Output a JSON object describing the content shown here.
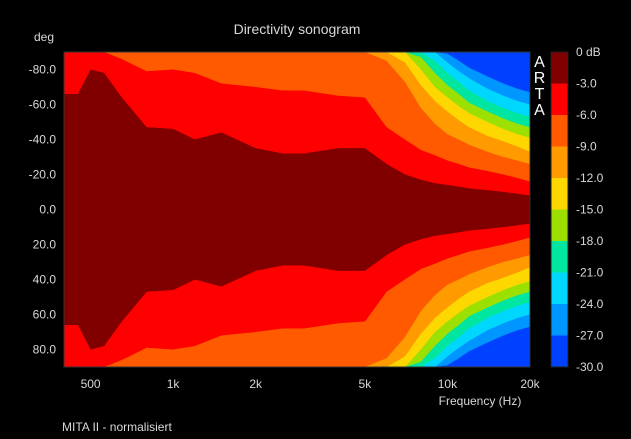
{
  "chart_data": {
    "type": "heatmap",
    "title": "Directivity sonogram",
    "ylabel": "deg",
    "xlabel": "Frequency (Hz)",
    "x_scale": "log",
    "xlim": [
      400,
      20000
    ],
    "ylim": [
      -90,
      90
    ],
    "x_ticks": [
      {
        "value": 500,
        "label": "500"
      },
      {
        "value": 1000,
        "label": "1k"
      },
      {
        "value": 2000,
        "label": "2k"
      },
      {
        "value": 5000,
        "label": "5k"
      },
      {
        "value": 10000,
        "label": "10k"
      },
      {
        "value": 20000,
        "label": "20k"
      }
    ],
    "y_ticks": [
      {
        "value": -80,
        "label": "-80.0"
      },
      {
        "value": -60,
        "label": "-60.0"
      },
      {
        "value": -40,
        "label": "-40.0"
      },
      {
        "value": -20,
        "label": "-20.0"
      },
      {
        "value": 0,
        "label": "0.0"
      },
      {
        "value": 20,
        "label": "20.0"
      },
      {
        "value": 40,
        "label": "40.0"
      },
      {
        "value": 60,
        "label": "60.0"
      },
      {
        "value": 80,
        "label": "80.0"
      }
    ],
    "colorbar": {
      "labels": [
        "0 dB",
        "-3.0",
        "-6.0",
        "-9.0",
        "-12.0",
        "-15.0",
        "-18.0",
        "-21.0",
        "-24.0",
        "-27.0",
        "-30.0"
      ],
      "bands": [
        {
          "from": 0,
          "to": -3,
          "color": "#800000"
        },
        {
          "from": -3,
          "to": -6,
          "color": "#ff0000"
        },
        {
          "from": -6,
          "to": -9,
          "color": "#ff5a00"
        },
        {
          "from": -9,
          "to": -12,
          "color": "#ff9b00"
        },
        {
          "from": -12,
          "to": -15,
          "color": "#ffd700"
        },
        {
          "from": -15,
          "to": -18,
          "color": "#9be000"
        },
        {
          "from": -18,
          "to": -21,
          "color": "#00e6a0"
        },
        {
          "from": -21,
          "to": -24,
          "color": "#00d7ff"
        },
        {
          "from": -24,
          "to": -27,
          "color": "#0096ff"
        },
        {
          "from": -27,
          "to": -30,
          "color": "#0040ff"
        }
      ]
    },
    "contours": {
      "freqs": [
        400,
        450,
        500,
        560,
        650,
        800,
        1000,
        1200,
        1500,
        2000,
        2500,
        3000,
        4000,
        5000,
        6000,
        7000,
        8000,
        9000,
        10000,
        11000,
        12000,
        14000,
        16000,
        18000,
        20000
      ],
      "edge_angle_deg": {
        "-3": [
          66,
          66,
          80,
          78,
          64,
          47,
          46,
          40,
          44,
          35,
          32,
          32,
          35,
          35,
          26,
          20,
          17,
          15,
          14,
          13,
          12,
          11,
          10,
          9,
          8
        ],
        "-6": [
          90,
          90,
          90,
          90,
          86,
          79,
          80,
          78,
          72,
          70,
          68,
          68,
          65,
          64,
          47,
          40,
          34,
          31,
          28,
          26,
          24,
          22,
          20,
          18,
          16
        ],
        "-9": [
          90,
          90,
          90,
          90,
          90,
          90,
          90,
          90,
          90,
          90,
          90,
          90,
          90,
          90,
          85,
          73,
          58,
          49,
          43,
          40,
          37,
          33,
          30,
          28,
          26
        ],
        "-12": [
          90,
          90,
          90,
          90,
          90,
          90,
          90,
          90,
          90,
          90,
          90,
          90,
          90,
          90,
          90,
          84,
          71,
          62,
          56,
          51,
          47,
          42,
          39,
          36,
          33
        ],
        "-15": [
          90,
          90,
          90,
          90,
          90,
          90,
          90,
          90,
          90,
          90,
          90,
          90,
          90,
          90,
          90,
          90,
          80,
          70,
          64,
          59,
          55,
          50,
          46,
          43,
          41
        ],
        "-18": [
          90,
          90,
          90,
          90,
          90,
          90,
          90,
          90,
          90,
          90,
          90,
          90,
          90,
          90,
          90,
          90,
          87,
          78,
          71,
          66,
          61,
          56,
          52,
          49,
          47
        ],
        "-21": [
          90,
          90,
          90,
          90,
          90,
          90,
          90,
          90,
          90,
          90,
          90,
          90,
          90,
          90,
          90,
          90,
          90,
          85,
          78,
          73,
          68,
          62,
          58,
          55,
          53
        ],
        "-24": [
          90,
          90,
          90,
          90,
          90,
          90,
          90,
          90,
          90,
          90,
          90,
          90,
          90,
          90,
          90,
          90,
          90,
          90,
          84,
          79,
          75,
          69,
          65,
          62,
          60
        ],
        "-27": [
          90,
          90,
          90,
          90,
          90,
          90,
          90,
          90,
          90,
          90,
          90,
          90,
          90,
          90,
          90,
          90,
          90,
          90,
          89,
          85,
          81,
          76,
          72,
          69,
          67
        ],
        "-30": [
          90,
          90,
          90,
          90,
          90,
          90,
          90,
          90,
          90,
          90,
          90,
          90,
          90,
          90,
          90,
          90,
          90,
          90,
          90,
          90,
          87,
          83,
          79,
          77,
          75
        ]
      }
    }
  },
  "watermark": "ARTA",
  "caption": "MITA II - normalisiert"
}
